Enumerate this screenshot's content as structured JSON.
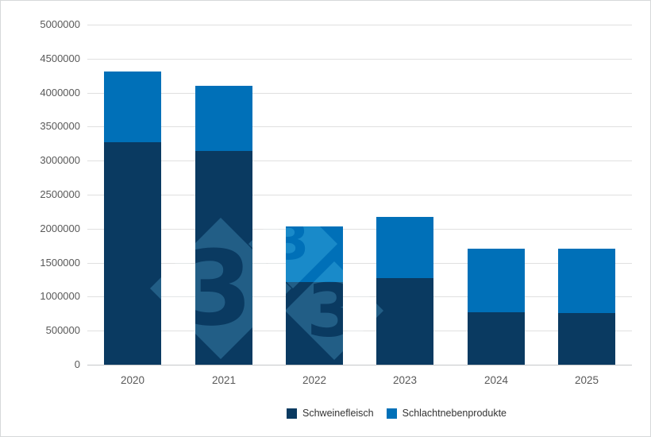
{
  "chart": {
    "watermark_digit": "3",
    "background_color": "#ffffff",
    "gridline_color": "#e0e0e0",
    "axis_baseline_color": "#c6c8ca",
    "tick_label_color": "#595959",
    "watermark_color": "#5aa7d8"
  },
  "chart_data": {
    "type": "bar",
    "stacked": true,
    "title": "",
    "xlabel": "",
    "ylabel": "",
    "categories": [
      "2020",
      "2021",
      "2022",
      "2023",
      "2024",
      "2025"
    ],
    "series": [
      {
        "name": "Schweinefleisch",
        "color": "#0a3a61",
        "values": [
          3275000,
          3140000,
          1210000,
          1270000,
          775000,
          755000
        ]
      },
      {
        "name": "Schlachtnebenprodukte",
        "color": "#0070b8",
        "values": [
          1040000,
          960000,
          820000,
          900000,
          935000,
          945000
        ]
      }
    ],
    "totals": [
      4315000,
      4100000,
      2030000,
      2170000,
      1710000,
      1700000
    ],
    "ylim": [
      0,
      5000000
    ],
    "ytick_step": 500000,
    "ytick_labels": [
      "0",
      "500000",
      "1000000",
      "1500000",
      "2000000",
      "2500000",
      "3000000",
      "3500000",
      "4000000",
      "4500000",
      "5000000"
    ],
    "grid": true,
    "legend_position": "bottom"
  },
  "legend": {
    "items": [
      {
        "label": "Schweinefleisch",
        "color": "#0a3a61"
      },
      {
        "label": "Schlachtnebenprodukte",
        "color": "#0070b8"
      }
    ]
  }
}
